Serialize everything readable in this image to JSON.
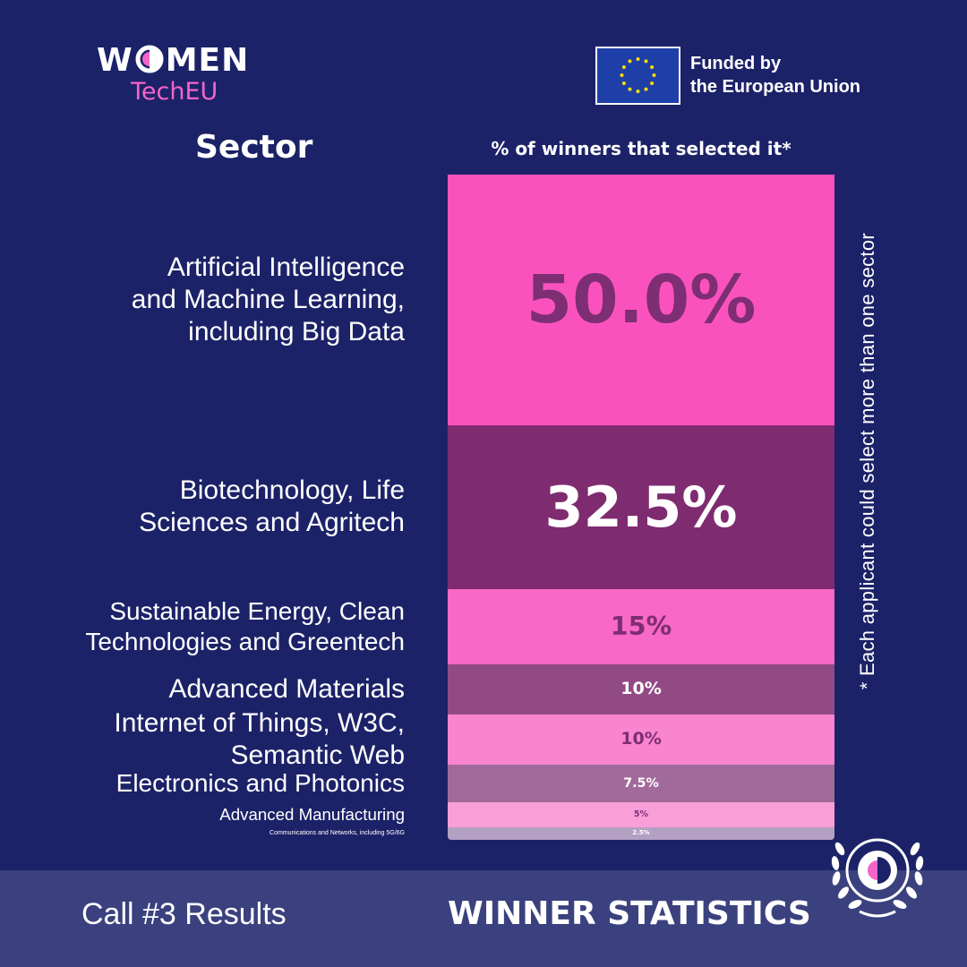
{
  "logo": {
    "w": "W",
    "men": "MEN",
    "subtitle": "TechEU"
  },
  "eu": {
    "line1": "Funded by",
    "line2": "the European Union"
  },
  "footer": {
    "call": "Call #3 Results",
    "title": "WINNER STATISTICS"
  },
  "colors": {
    "background": "#1c2268",
    "bottom_bar": "#3a417e",
    "accent_pink": "#f464c9"
  },
  "chart_data": {
    "type": "bar",
    "category_header": "Sector",
    "value_header": "% of winners that selected it*",
    "footnote": "* Each applicant could select more than one sector",
    "unit": "%",
    "categories": [
      "Artificial Intelligence\nand Machine Learning,\nincluding Big Data",
      "Biotechnology, Life\nSciences and Agritech",
      "Sustainable Energy, Clean\nTechnologies and Greentech",
      "Advanced Materials",
      "Internet of Things, W3C, Semantic Web",
      "Electronics and Photonics",
      "Advanced Manufacturing",
      "Communications and Networks, including 5G/6G"
    ],
    "values": [
      50.0,
      32.5,
      15,
      10,
      10,
      7.5,
      5,
      2.5
    ],
    "labels": [
      "50.0%",
      "32.5%",
      "15%",
      "10%",
      "10%",
      "7.5%",
      "5%",
      "2.5%"
    ],
    "colors": [
      "#fa52bd",
      "#7f2b70",
      "#f868c5",
      "#924a85",
      "#f985cf",
      "#a26a9b",
      "#fa9ed8",
      "#b4a0c2"
    ],
    "label_colors": [
      "#7e2e72",
      "#ffffff",
      "#7e2e72",
      "#ffffff",
      "#7e2e72",
      "#ffffff",
      "#7e2e72",
      "#ffffff"
    ]
  }
}
